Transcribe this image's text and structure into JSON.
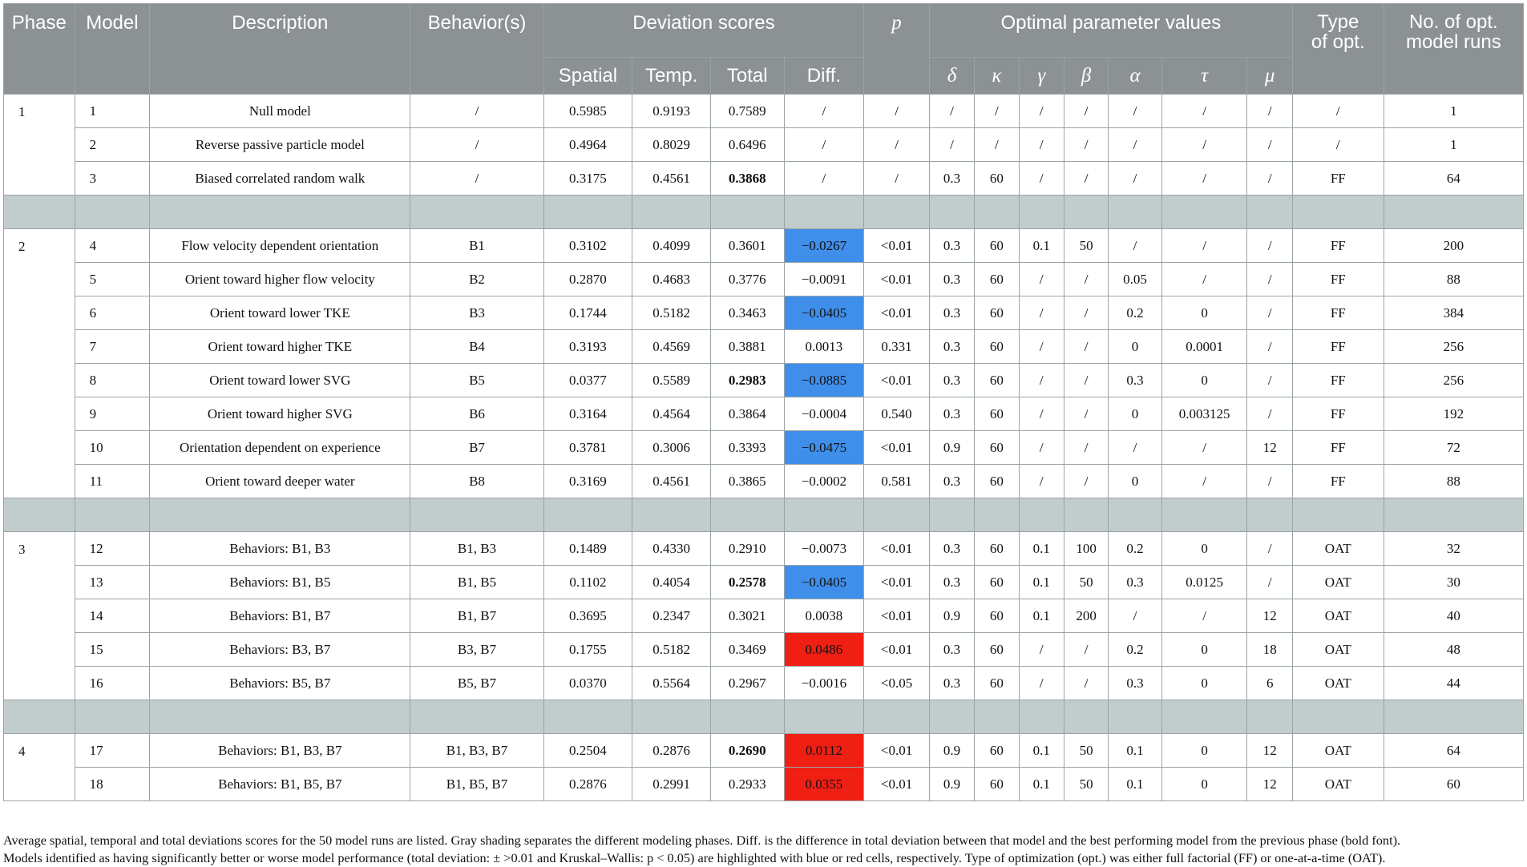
{
  "header": {
    "phase": "Phase",
    "model": "Model",
    "description": "Description",
    "behaviors": "Behavior(s)",
    "deviation_scores": "Deviation scores",
    "p": "p",
    "optimal_parameter_values": "Optimal parameter values",
    "type_of_opt_line1": "Type",
    "type_of_opt_line2": "of opt.",
    "no_runs_line1": "No. of opt.",
    "no_runs_line2": "model runs",
    "spatial": "Spatial",
    "temp": "Temp.",
    "total": "Total",
    "diff": "Diff.",
    "params": [
      "δ",
      "κ",
      "γ",
      "β",
      "α",
      "τ",
      "μ"
    ]
  },
  "rows": [
    {
      "phase": "1",
      "model": "1",
      "description": "Null model",
      "behaviors": "/",
      "spatial": "0.5985",
      "temp": "0.9193",
      "total": "0.7589",
      "diff": "/",
      "p": "/",
      "delta": "/",
      "kappa": "/",
      "gamma": "/",
      "beta": "/",
      "alpha": "/",
      "tau": "/",
      "mu": "/",
      "type": "/",
      "runs": "1"
    },
    {
      "phase": "",
      "model": "2",
      "description": "Reverse passive particle model",
      "behaviors": "/",
      "spatial": "0.4964",
      "temp": "0.8029",
      "total": "0.6496",
      "diff": "/",
      "p": "/",
      "delta": "/",
      "kappa": "/",
      "gamma": "/",
      "beta": "/",
      "alpha": "/",
      "tau": "/",
      "mu": "/",
      "type": "/",
      "runs": "1"
    },
    {
      "phase": "",
      "model": "3",
      "description": "Biased correlated random walk",
      "behaviors": "/",
      "spatial": "0.3175",
      "temp": "0.4561",
      "total": "0.3868",
      "diff": "/",
      "p": "/",
      "delta": "0.3",
      "kappa": "60",
      "gamma": "/",
      "beta": "/",
      "alpha": "/",
      "tau": "/",
      "mu": "/",
      "type": "FF",
      "runs": "64"
    },
    {
      "phase": "2",
      "model": "4",
      "description": "Flow velocity dependent orientation",
      "behaviors": "B1",
      "spatial": "0.3102",
      "temp": "0.4099",
      "total": "0.3601",
      "diff": "−0.0267",
      "p": "<0.01",
      "delta": "0.3",
      "kappa": "60",
      "gamma": "0.1",
      "beta": "50",
      "alpha": "/",
      "tau": "/",
      "mu": "/",
      "type": "FF",
      "runs": "200"
    },
    {
      "phase": "",
      "model": "5",
      "description": "Orient toward higher flow velocity",
      "behaviors": "B2",
      "spatial": "0.2870",
      "temp": "0.4683",
      "total": "0.3776",
      "diff": "−0.0091",
      "p": "<0.01",
      "delta": "0.3",
      "kappa": "60",
      "gamma": "/",
      "beta": "/",
      "alpha": "0.05",
      "tau": "/",
      "mu": "/",
      "type": "FF",
      "runs": "88"
    },
    {
      "phase": "",
      "model": "6",
      "description": "Orient toward lower TKE",
      "behaviors": "B3",
      "spatial": "0.1744",
      "temp": "0.5182",
      "total": "0.3463",
      "diff": "−0.0405",
      "p": "<0.01",
      "delta": "0.3",
      "kappa": "60",
      "gamma": "/",
      "beta": "/",
      "alpha": "0.2",
      "tau": "0",
      "mu": "/",
      "type": "FF",
      "runs": "384"
    },
    {
      "phase": "",
      "model": "7",
      "description": "Orient toward higher TKE",
      "behaviors": "B4",
      "spatial": "0.3193",
      "temp": "0.4569",
      "total": "0.3881",
      "diff": "0.0013",
      "p": "0.331",
      "delta": "0.3",
      "kappa": "60",
      "gamma": "/",
      "beta": "/",
      "alpha": "0",
      "tau": "0.0001",
      "mu": "/",
      "type": "FF",
      "runs": "256"
    },
    {
      "phase": "",
      "model": "8",
      "description": "Orient toward lower SVG",
      "behaviors": "B5",
      "spatial": "0.0377",
      "temp": "0.5589",
      "total": "0.2983",
      "diff": "−0.0885",
      "p": "<0.01",
      "delta": "0.3",
      "kappa": "60",
      "gamma": "/",
      "beta": "/",
      "alpha": "0.3",
      "tau": "0",
      "mu": "/",
      "type": "FF",
      "runs": "256"
    },
    {
      "phase": "",
      "model": "9",
      "description": "Orient toward higher SVG",
      "behaviors": "B6",
      "spatial": "0.3164",
      "temp": "0.4564",
      "total": "0.3864",
      "diff": "−0.0004",
      "p": "0.540",
      "delta": "0.3",
      "kappa": "60",
      "gamma": "/",
      "beta": "/",
      "alpha": "0",
      "tau": "0.003125",
      "mu": "/",
      "type": "FF",
      "runs": "192"
    },
    {
      "phase": "",
      "model": "10",
      "description": "Orientation dependent on experience",
      "behaviors": "B7",
      "spatial": "0.3781",
      "temp": "0.3006",
      "total": "0.3393",
      "diff": "−0.0475",
      "p": "<0.01",
      "delta": "0.9",
      "kappa": "60",
      "gamma": "/",
      "beta": "/",
      "alpha": "/",
      "tau": "/",
      "mu": "12",
      "type": "FF",
      "runs": "72"
    },
    {
      "phase": "",
      "model": "11",
      "description": "Orient toward deeper water",
      "behaviors": "B8",
      "spatial": "0.3169",
      "temp": "0.4561",
      "total": "0.3865",
      "diff": "−0.0002",
      "p": "0.581",
      "delta": "0.3",
      "kappa": "60",
      "gamma": "/",
      "beta": "/",
      "alpha": "0",
      "tau": "/",
      "mu": "/",
      "type": "FF",
      "runs": "88"
    },
    {
      "phase": "3",
      "model": "12",
      "description": "Behaviors: B1, B3",
      "behaviors": "B1, B3",
      "spatial": "0.1489",
      "temp": "0.4330",
      "total": "0.2910",
      "diff": "−0.0073",
      "p": "<0.01",
      "delta": "0.3",
      "kappa": "60",
      "gamma": "0.1",
      "beta": "100",
      "alpha": "0.2",
      "tau": "0",
      "mu": "/",
      "type": "OAT",
      "runs": "32"
    },
    {
      "phase": "",
      "model": "13",
      "description": "Behaviors: B1, B5",
      "behaviors": "B1, B5",
      "spatial": "0.1102",
      "temp": "0.4054",
      "total": "0.2578",
      "diff": "−0.0405",
      "p": "<0.01",
      "delta": "0.3",
      "kappa": "60",
      "gamma": "0.1",
      "beta": "50",
      "alpha": "0.3",
      "tau": "0.0125",
      "mu": "/",
      "type": "OAT",
      "runs": "30"
    },
    {
      "phase": "",
      "model": "14",
      "description": "Behaviors: B1, B7",
      "behaviors": "B1, B7",
      "spatial": "0.3695",
      "temp": "0.2347",
      "total": "0.3021",
      "diff": "0.0038",
      "p": "<0.01",
      "delta": "0.9",
      "kappa": "60",
      "gamma": "0.1",
      "beta": "200",
      "alpha": "/",
      "tau": "/",
      "mu": "12",
      "type": "OAT",
      "runs": "40"
    },
    {
      "phase": "",
      "model": "15",
      "description": "Behaviors: B3, B7",
      "behaviors": "B3, B7",
      "spatial": "0.1755",
      "temp": "0.5182",
      "total": "0.3469",
      "diff": "0.0486",
      "p": "<0.01",
      "delta": "0.3",
      "kappa": "60",
      "gamma": "/",
      "beta": "/",
      "alpha": "0.2",
      "tau": "0",
      "mu": "18",
      "type": "OAT",
      "runs": "48"
    },
    {
      "phase": "",
      "model": "16",
      "description": "Behaviors: B5, B7",
      "behaviors": "B5, B7",
      "spatial": "0.0370",
      "temp": "0.5564",
      "total": "0.2967",
      "diff": "−0.0016",
      "p": "<0.05",
      "delta": "0.3",
      "kappa": "60",
      "gamma": "/",
      "beta": "/",
      "alpha": "0.3",
      "tau": "0",
      "mu": "6",
      "type": "OAT",
      "runs": "44"
    },
    {
      "phase": "4",
      "model": "17",
      "description": "Behaviors: B1, B3, B7",
      "behaviors": "B1, B3, B7",
      "spatial": "0.2504",
      "temp": "0.2876",
      "total": "0.2690",
      "diff": "0.0112",
      "p": "<0.01",
      "delta": "0.9",
      "kappa": "60",
      "gamma": "0.1",
      "beta": "50",
      "alpha": "0.1",
      "tau": "0",
      "mu": "12",
      "type": "OAT",
      "runs": "64"
    },
    {
      "phase": "",
      "model": "18",
      "description": "Behaviors: B1, B5, B7",
      "behaviors": "B1, B5, B7",
      "spatial": "0.2876",
      "temp": "0.2991",
      "total": "0.2933",
      "diff": "0.0355",
      "p": "<0.01",
      "delta": "0.9",
      "kappa": "60",
      "gamma": "0.1",
      "beta": "50",
      "alpha": "0.1",
      "tau": "0",
      "mu": "12",
      "type": "OAT",
      "runs": "60"
    }
  ],
  "highlights": {
    "blue": "#3f8fea",
    "red": "#f01f14",
    "separator": "#c1cccc",
    "header": "#8c9194"
  },
  "note": {
    "line1": "Average spatial, temporal and total deviations scores for the 50 model runs are listed. Gray shading separates the different modeling phases. Diff. is the difference in total deviation between that model and the best performing model from the previous phase (bold font).",
    "line2": "Models identified as having significantly better or worse model performance (total deviation: ± >0.01 and Kruskal–Wallis: p < 0.05) are highlighted with blue or red cells, respectively. Type of optimization (opt.) was either full factorial (FF) or one-at-a-time (OAT)."
  }
}
